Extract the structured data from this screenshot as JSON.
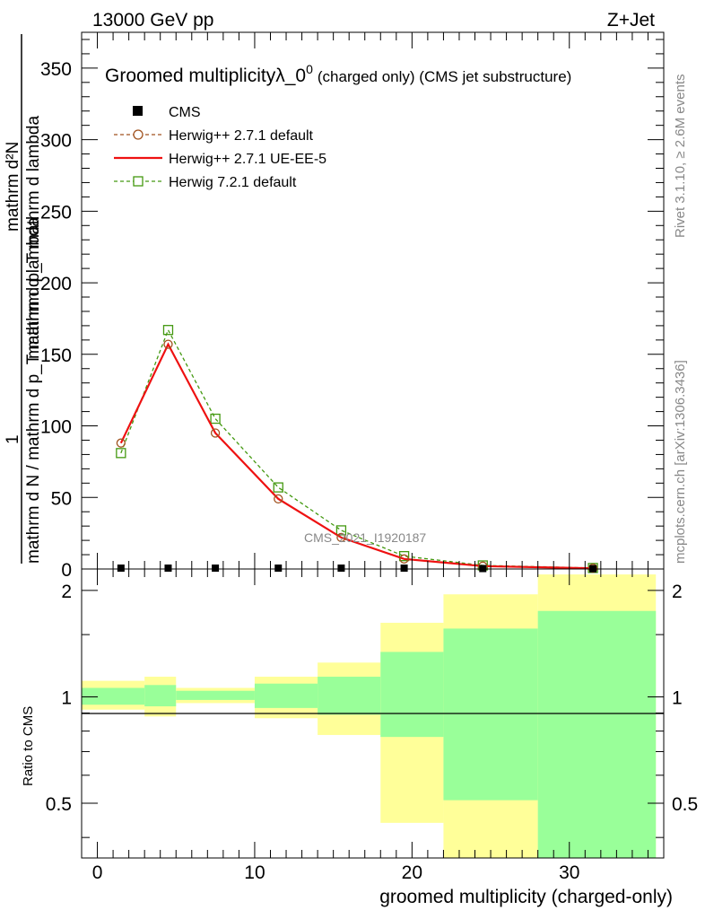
{
  "header": {
    "left": "13000 GeV pp",
    "right": "Z+Jet"
  },
  "side": {
    "top": "Rivet 3.1.10, ≥ 2.6M events",
    "bottom": "mcplots.cern.ch [arXiv:1306.3436]"
  },
  "main_plot": {
    "title_main": "Groomed multiplicityλ_0",
    "title_sup": "0",
    "title_suffix": "(charged only) (CMS jet substructure)",
    "ylabel_top": "1",
    "ylabel_bottom": "mathrm d N / mathrm d p_T mathrm d lambda",
    "ylabel_frac_num": "mathrm d²N",
    "ylabel_frac_den": "mathrm d p_T mathrm d lambda",
    "watermark": "CMS_2021_I1920187",
    "legend": [
      {
        "label": "CMS",
        "color": "#000000",
        "style": "square"
      },
      {
        "label": "Herwig++ 2.7.1 default",
        "color": "#a0521e",
        "style": "circle-dashed"
      },
      {
        "label": "Herwig++ 2.7.1 UE-EE-5",
        "color": "#ee1111",
        "style": "solid"
      },
      {
        "label": "Herwig 7.2.1 default",
        "color": "#449911",
        "style": "square-dashed"
      }
    ],
    "y_ticks": [
      "50",
      "100",
      "150",
      "200",
      "250",
      "300",
      "350",
      "0"
    ]
  },
  "ratio_plot": {
    "ylabel": "Ratio to CMS",
    "y_ticks": [
      "0.5",
      "1",
      "2"
    ],
    "bands": [
      {
        "lo": -1,
        "hi": 3,
        "y_lo": 0.92,
        "y_hi": 1.11,
        "g_lo": 0.95,
        "g_hi": 1.06
      },
      {
        "lo": 3,
        "hi": 5,
        "y_lo": 0.88,
        "y_hi": 1.14,
        "g_lo": 0.94,
        "g_hi": 1.08
      },
      {
        "lo": 5,
        "hi": 10,
        "y_lo": 0.96,
        "y_hi": 1.06,
        "g_lo": 0.98,
        "g_hi": 1.04
      },
      {
        "lo": 10,
        "hi": 14,
        "y_lo": 0.87,
        "y_hi": 1.14,
        "g_lo": 0.93,
        "g_hi": 1.09
      },
      {
        "lo": 14,
        "hi": 18,
        "y_lo": 0.78,
        "y_hi": 1.25,
        "g_lo": 0.89,
        "g_hi": 1.14
      },
      {
        "lo": 18,
        "hi": 22,
        "y_lo": 0.44,
        "y_hi": 1.62,
        "g_lo": 0.77,
        "g_hi": 1.34
      },
      {
        "lo": 22,
        "hi": 28,
        "y_lo": 0.35,
        "y_hi": 1.95,
        "g_lo": 0.51,
        "g_hi": 1.56
      },
      {
        "lo": 28,
        "hi": 35.5,
        "y_lo": 0.35,
        "y_hi": 2.22,
        "g_lo": 0.35,
        "g_hi": 1.75
      }
    ]
  },
  "xaxis": {
    "label": "groomed multiplicity (charged-only)",
    "ticks": [
      "0",
      "10",
      "20",
      "30"
    ]
  },
  "chart_data": {
    "type": "line",
    "title": "Groomed multiplicityλ_0^0 (charged only) (CMS jet substructure)",
    "xlabel": "groomed multiplicity (charged-only)",
    "ylabel": "1/(mathrm d N / mathrm d p_T mathrm d lambda) mathrm d²N/(mathrm d p_T mathrm d lambda)",
    "xlim": [
      -1,
      36
    ],
    "ylim": [
      0,
      375
    ],
    "ratio_ylim": [
      0.35,
      2.3
    ],
    "x": [
      1.5,
      4.5,
      7.5,
      11.5,
      15.5,
      19.5,
      24.5,
      31.5
    ],
    "series": [
      {
        "name": "CMS",
        "values": [
          0.6,
          0.6,
          0.6,
          0.6,
          0.6,
          0.6,
          0.3,
          0.2
        ]
      },
      {
        "name": "Herwig++ 2.7.1 default",
        "values": [
          88,
          157,
          95,
          49,
          22,
          7,
          2,
          0.5
        ]
      },
      {
        "name": "Herwig++ 2.7.1 UE-EE-5",
        "values": [
          88,
          157,
          95,
          49,
          22,
          7,
          2,
          0.5
        ]
      },
      {
        "name": "Herwig 7.2.1 default",
        "values": [
          81,
          167,
          105,
          57,
          27,
          9,
          2.5,
          0.7
        ]
      }
    ]
  }
}
